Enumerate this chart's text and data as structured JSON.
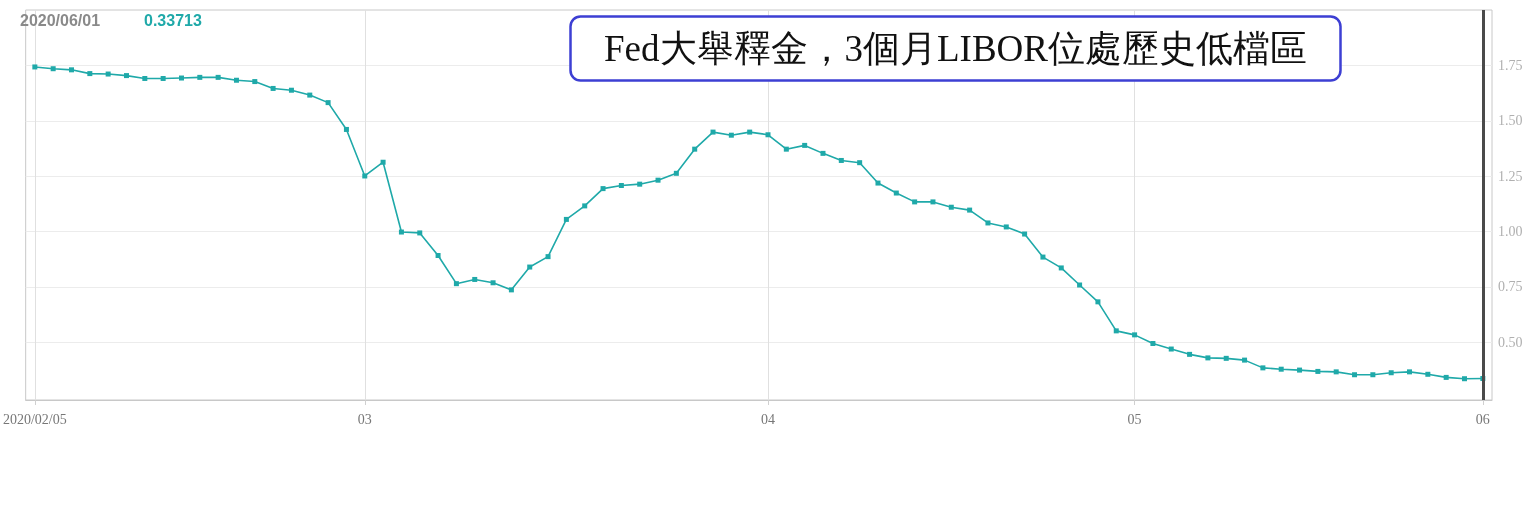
{
  "chart_data": {
    "type": "line",
    "title": "Fed大舉釋金，3個月LIBOR位處歷史低檔區",
    "annotations": [
      "2020/06/01",
      "0.33713"
    ],
    "categories": [
      "2020/02/05",
      null,
      null,
      null,
      null,
      null,
      null,
      null,
      null,
      null,
      null,
      null,
      null,
      null,
      null,
      null,
      null,
      null,
      "03",
      null,
      null,
      null,
      null,
      null,
      null,
      null,
      null,
      null,
      null,
      null,
      null,
      null,
      null,
      null,
      null,
      null,
      null,
      null,
      null,
      null,
      "04",
      null,
      null,
      null,
      null,
      null,
      null,
      null,
      null,
      null,
      null,
      null,
      null,
      null,
      null,
      null,
      null,
      null,
      null,
      null,
      "05",
      null,
      null,
      null,
      null,
      null,
      null,
      null,
      null,
      null,
      null,
      null,
      null,
      null,
      null,
      null,
      null,
      null,
      null,
      "06"
    ],
    "series": [
      {
        "color": "#1fa9a9",
        "values": [
          1.743,
          1.735,
          1.73,
          1.713,
          1.711,
          1.704,
          1.691,
          1.691,
          1.693,
          1.696,
          1.696,
          1.683,
          1.677,
          1.646,
          1.638,
          1.616,
          1.582,
          1.461,
          1.251,
          1.313,
          0.998,
          0.994,
          0.892,
          0.765,
          0.784,
          0.769,
          0.737,
          0.84,
          0.887,
          1.055,
          1.116,
          1.194,
          1.208,
          1.214,
          1.232,
          1.263,
          1.372,
          1.449,
          1.435,
          1.449,
          1.437,
          1.372,
          1.389,
          1.353,
          1.321,
          1.311,
          1.219,
          1.174,
          1.134,
          1.134,
          1.11,
          1.097,
          1.039,
          1.021,
          0.989,
          0.885,
          0.836,
          0.759,
          0.683,
          0.552,
          0.534,
          0.495,
          0.47,
          0.446,
          0.43,
          0.428,
          0.42,
          0.385,
          0.379,
          0.375,
          0.369,
          0.367,
          0.354,
          0.354,
          0.363,
          0.367,
          0.356,
          0.342,
          0.336,
          0.33713
        ]
      }
    ],
    "ylim": [
      0.24,
      2.0
    ],
    "yticks": [
      {
        "value": 0.5,
        "label": "0.50"
      },
      {
        "value": 0.75,
        "label": "0.75"
      },
      {
        "value": 1.0,
        "label": "1.00"
      },
      {
        "value": 1.25,
        "label": "1.25"
      },
      {
        "value": 1.5,
        "label": "1.50"
      },
      {
        "value": 1.75,
        "label": "1.75"
      }
    ],
    "ref_lines": [
      {
        "axis": "x",
        "value": "06",
        "color": "#4a4a4a"
      }
    ],
    "grid": true,
    "marker": "square",
    "line_style": "solid"
  }
}
